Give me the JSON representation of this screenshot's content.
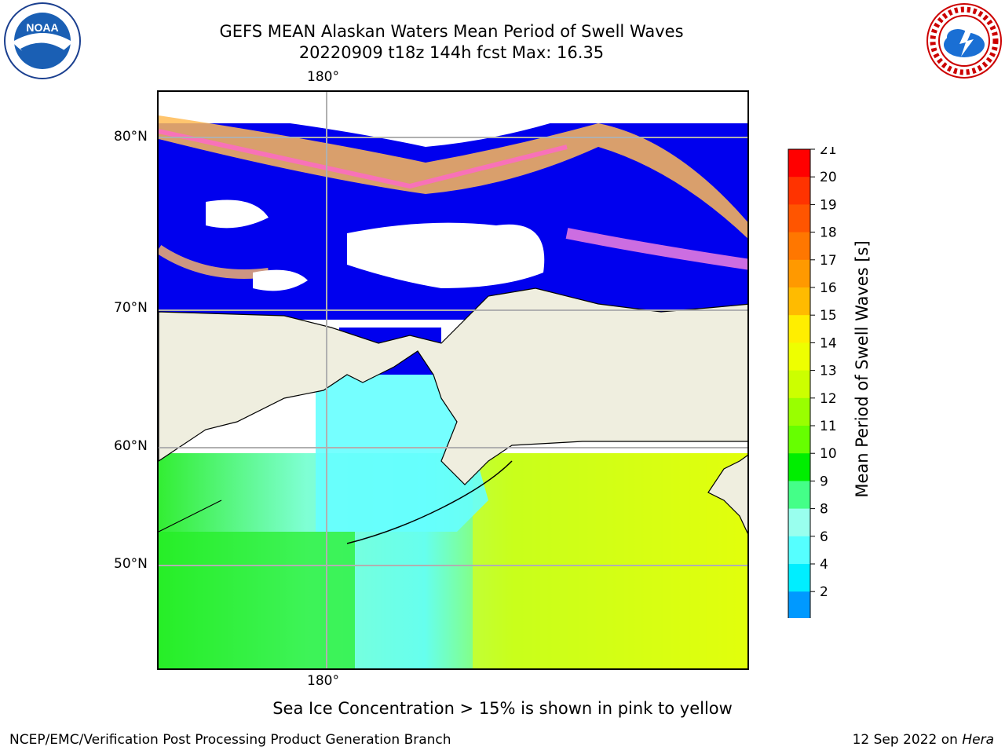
{
  "title_line1": "GEFS MEAN Alaskan Waters Mean Period of Swell Waves",
  "title_line2": "20220909 t18z 144h fcst   Max: 16.35",
  "map": {
    "lon_label_top": "180°",
    "lon_label_bottom": "180°",
    "lat_labels": [
      "80°N",
      "70°N",
      "60°N",
      "50°N"
    ]
  },
  "colorbar": {
    "label": "Mean Period of Swell Waves [s]",
    "ticks": [
      "21",
      "20",
      "19",
      "18",
      "17",
      "16",
      "15",
      "14",
      "13",
      "12",
      "11",
      "10",
      "9",
      "8",
      "6",
      "4",
      "2"
    ],
    "colors": [
      "#ff0000",
      "#ff3300",
      "#ff5500",
      "#ff7700",
      "#ff9900",
      "#ffbb00",
      "#ffee00",
      "#eeff00",
      "#ccff00",
      "#99ff00",
      "#66ff00",
      "#00ee00",
      "#44ff88",
      "#99ffee",
      "#55ffff",
      "#00eeff",
      "#0099ff"
    ],
    "extend_color": "#0000ff"
  },
  "note": "Sea Ice Concentration > 15% is shown in pink to yellow",
  "footer_left": "NCEP/EMC/Verification Post Processing Product Generation Branch",
  "footer_right_prefix": "12 Sep 2022 on ",
  "footer_right_machine": "Hera",
  "logos": {
    "left": "noaa-logo",
    "right": "nws-logo"
  }
}
